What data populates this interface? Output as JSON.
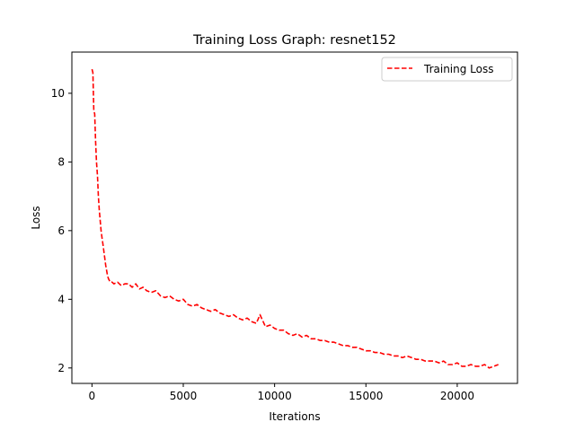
{
  "chart_data": {
    "type": "line",
    "title": "Training Loss Graph: resnet152",
    "xlabel": "Iterations",
    "ylabel": "Loss",
    "xlim": [
      -1100,
      23300
    ],
    "ylim": [
      1.55,
      11.2
    ],
    "xticks": [
      0,
      5000,
      10000,
      15000,
      20000
    ],
    "yticks": [
      2,
      4,
      6,
      8,
      10
    ],
    "grid": false,
    "legend_position": "top-right",
    "series": [
      {
        "name": "Training Loss",
        "color": "#ff0000",
        "line_style": "dashed",
        "x": [
          0,
          50,
          100,
          150,
          200,
          250,
          300,
          350,
          400,
          450,
          500,
          550,
          600,
          650,
          700,
          750,
          800,
          850,
          900,
          950,
          1000,
          1100,
          1200,
          1400,
          1600,
          1800,
          2000,
          2200,
          2400,
          2600,
          2800,
          3000,
          3250,
          3500,
          3750,
          4000,
          4250,
          4500,
          4750,
          5000,
          5250,
          5500,
          5750,
          6000,
          6250,
          6500,
          6750,
          7000,
          7250,
          7500,
          7750,
          8000,
          8250,
          8500,
          8750,
          9000,
          9200,
          9500,
          9750,
          10000,
          10250,
          10500,
          10750,
          11000,
          11250,
          11500,
          11750,
          12000,
          12250,
          12500,
          12750,
          13000,
          13250,
          13500,
          13750,
          14000,
          14250,
          14500,
          14750,
          15000,
          15250,
          15500,
          15750,
          16000,
          16250,
          16500,
          16750,
          17000,
          17250,
          17500,
          17750,
          18000,
          18250,
          18500,
          18750,
          19000,
          19250,
          19500,
          19750,
          20000,
          20250,
          20500,
          20750,
          21000,
          21250,
          21500,
          21750,
          22000,
          22250
        ],
        "y": [
          10.7,
          10.6,
          9.5,
          9.4,
          8.6,
          8.0,
          7.6,
          7.0,
          6.6,
          6.3,
          6.0,
          5.8,
          5.6,
          5.4,
          5.2,
          5.0,
          4.85,
          4.7,
          4.6,
          4.55,
          4.5,
          4.5,
          4.45,
          4.5,
          4.4,
          4.45,
          4.45,
          4.35,
          4.45,
          4.3,
          4.35,
          4.25,
          4.2,
          4.25,
          4.1,
          4.05,
          4.1,
          4.0,
          3.95,
          4.0,
          3.85,
          3.8,
          3.85,
          3.75,
          3.7,
          3.65,
          3.7,
          3.6,
          3.55,
          3.5,
          3.55,
          3.45,
          3.4,
          3.45,
          3.35,
          3.3,
          3.55,
          3.2,
          3.25,
          3.15,
          3.1,
          3.1,
          3.0,
          2.95,
          3.0,
          2.9,
          2.95,
          2.85,
          2.85,
          2.8,
          2.8,
          2.75,
          2.75,
          2.7,
          2.65,
          2.65,
          2.6,
          2.6,
          2.55,
          2.5,
          2.5,
          2.45,
          2.45,
          2.4,
          2.4,
          2.35,
          2.35,
          2.3,
          2.35,
          2.3,
          2.25,
          2.25,
          2.2,
          2.2,
          2.2,
          2.15,
          2.2,
          2.1,
          2.1,
          2.15,
          2.05,
          2.05,
          2.1,
          2.05,
          2.05,
          2.1,
          2.0,
          2.05,
          2.1
        ]
      }
    ]
  }
}
